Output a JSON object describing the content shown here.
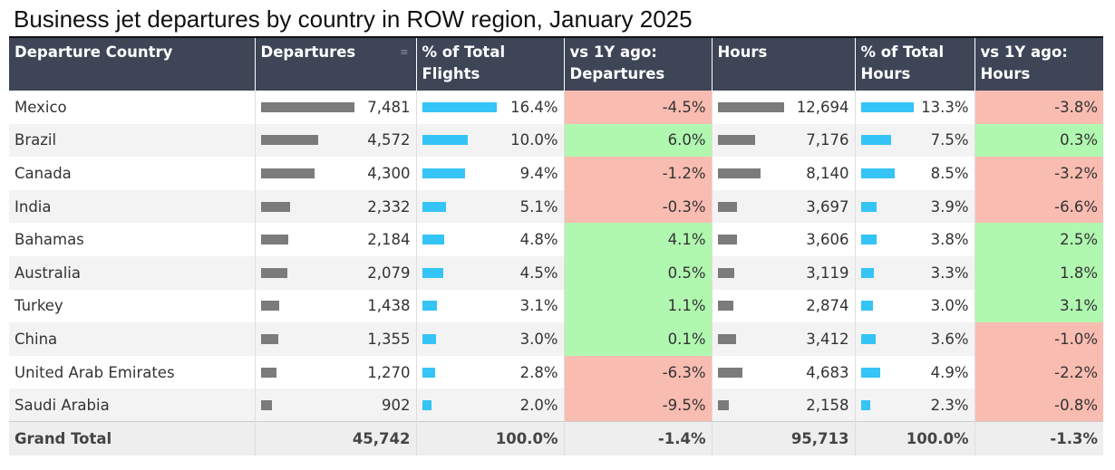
{
  "title": "Business jet departures by country in ROW region, January 2025",
  "headers": {
    "country": "Departure Country",
    "departures": "Departures",
    "pct_flights": "% of Total Flights",
    "yoy_departures": "vs 1Y ago: Departures",
    "hours": "Hours",
    "pct_hours": "% of Total Hours",
    "yoy_hours": "vs 1Y ago: Hours"
  },
  "colors": {
    "header_bg": "#3d4557",
    "bar_gray": "#7b7b7b",
    "bar_blue": "#35c4f6",
    "negative_bg": "#f9bcb1",
    "positive_bg": "#b0f7b0"
  },
  "chart_data": {
    "type": "table",
    "title": "Business jet departures by country in ROW region, January 2025",
    "columns": [
      "Departure Country",
      "Departures",
      "% of Total Flights",
      "vs 1Y ago: Departures",
      "Hours",
      "% of Total Hours",
      "vs 1Y ago: Hours"
    ],
    "rows": [
      {
        "country": "Mexico",
        "departures": 7481,
        "departures_label": "7,481",
        "pct_flights": 16.4,
        "pct_flights_label": "16.4%",
        "yoy_departures": -4.5,
        "yoy_departures_label": "-4.5%",
        "hours": 12694,
        "hours_label": "12,694",
        "pct_hours": 13.3,
        "pct_hours_label": "13.3%",
        "yoy_hours": -3.8,
        "yoy_hours_label": "-3.8%"
      },
      {
        "country": "Brazil",
        "departures": 4572,
        "departures_label": "4,572",
        "pct_flights": 10.0,
        "pct_flights_label": "10.0%",
        "yoy_departures": 6.0,
        "yoy_departures_label": "6.0%",
        "hours": 7176,
        "hours_label": "7,176",
        "pct_hours": 7.5,
        "pct_hours_label": "7.5%",
        "yoy_hours": 0.3,
        "yoy_hours_label": "0.3%"
      },
      {
        "country": "Canada",
        "departures": 4300,
        "departures_label": "4,300",
        "pct_flights": 9.4,
        "pct_flights_label": "9.4%",
        "yoy_departures": -1.2,
        "yoy_departures_label": "-1.2%",
        "hours": 8140,
        "hours_label": "8,140",
        "pct_hours": 8.5,
        "pct_hours_label": "8.5%",
        "yoy_hours": -3.2,
        "yoy_hours_label": "-3.2%"
      },
      {
        "country": "India",
        "departures": 2332,
        "departures_label": "2,332",
        "pct_flights": 5.1,
        "pct_flights_label": "5.1%",
        "yoy_departures": -0.3,
        "yoy_departures_label": "-0.3%",
        "hours": 3697,
        "hours_label": "3,697",
        "pct_hours": 3.9,
        "pct_hours_label": "3.9%",
        "yoy_hours": -6.6,
        "yoy_hours_label": "-6.6%"
      },
      {
        "country": "Bahamas",
        "departures": 2184,
        "departures_label": "2,184",
        "pct_flights": 4.8,
        "pct_flights_label": "4.8%",
        "yoy_departures": 4.1,
        "yoy_departures_label": "4.1%",
        "hours": 3606,
        "hours_label": "3,606",
        "pct_hours": 3.8,
        "pct_hours_label": "3.8%",
        "yoy_hours": 2.5,
        "yoy_hours_label": "2.5%"
      },
      {
        "country": "Australia",
        "departures": 2079,
        "departures_label": "2,079",
        "pct_flights": 4.5,
        "pct_flights_label": "4.5%",
        "yoy_departures": 0.5,
        "yoy_departures_label": "0.5%",
        "hours": 3119,
        "hours_label": "3,119",
        "pct_hours": 3.3,
        "pct_hours_label": "3.3%",
        "yoy_hours": 1.8,
        "yoy_hours_label": "1.8%"
      },
      {
        "country": "Turkey",
        "departures": 1438,
        "departures_label": "1,438",
        "pct_flights": 3.1,
        "pct_flights_label": "3.1%",
        "yoy_departures": 1.1,
        "yoy_departures_label": "1.1%",
        "hours": 2874,
        "hours_label": "2,874",
        "pct_hours": 3.0,
        "pct_hours_label": "3.0%",
        "yoy_hours": 3.1,
        "yoy_hours_label": "3.1%"
      },
      {
        "country": "China",
        "departures": 1355,
        "departures_label": "1,355",
        "pct_flights": 3.0,
        "pct_flights_label": "3.0%",
        "yoy_departures": 0.1,
        "yoy_departures_label": "0.1%",
        "hours": 3412,
        "hours_label": "3,412",
        "pct_hours": 3.6,
        "pct_hours_label": "3.6%",
        "yoy_hours": -1.0,
        "yoy_hours_label": "-1.0%"
      },
      {
        "country": "United Arab Emirates",
        "departures": 1270,
        "departures_label": "1,270",
        "pct_flights": 2.8,
        "pct_flights_label": "2.8%",
        "yoy_departures": -6.3,
        "yoy_departures_label": "-6.3%",
        "hours": 4683,
        "hours_label": "4,683",
        "pct_hours": 4.9,
        "pct_hours_label": "4.9%",
        "yoy_hours": -2.2,
        "yoy_hours_label": "-2.2%"
      },
      {
        "country": "Saudi Arabia",
        "departures": 902,
        "departures_label": "902",
        "pct_flights": 2.0,
        "pct_flights_label": "2.0%",
        "yoy_departures": -9.5,
        "yoy_departures_label": "-9.5%",
        "hours": 2158,
        "hours_label": "2,158",
        "pct_hours": 2.3,
        "pct_hours_label": "2.3%",
        "yoy_hours": -0.8,
        "yoy_hours_label": "-0.8%"
      }
    ],
    "total": {
      "label": "Grand Total",
      "departures_label": "45,742",
      "pct_flights_label": "100.0%",
      "yoy_departures_label": "-1.4%",
      "hours_label": "95,713",
      "pct_hours_label": "100.0%",
      "yoy_hours_label": "-1.3%"
    }
  }
}
